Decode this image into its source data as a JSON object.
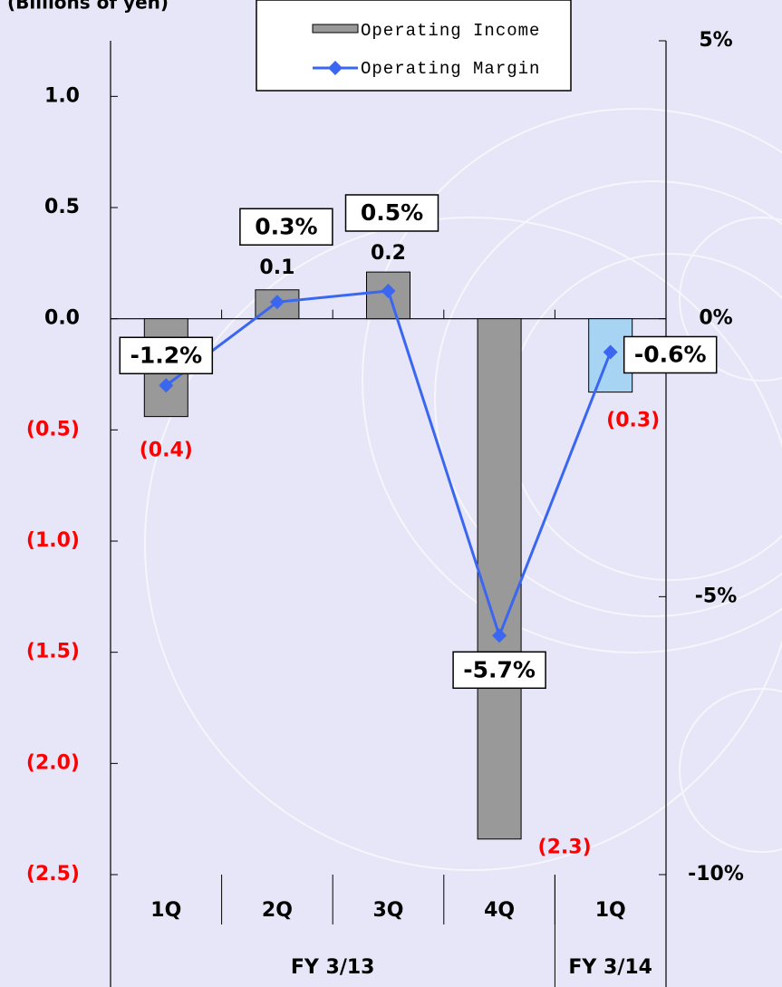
{
  "chart_data": {
    "type": "bar_line",
    "unit_label": "(Billions of yen)",
    "categories": [
      "1Q",
      "2Q",
      "3Q",
      "4Q",
      "1Q"
    ],
    "groups": [
      {
        "label": "FY 3/13",
        "span": [
          0,
          3
        ]
      },
      {
        "label": "FY 3/14",
        "span": [
          4,
          4
        ]
      }
    ],
    "series": [
      {
        "name": "Operating Income",
        "type": "bar",
        "color": "#999999",
        "colors": [
          "#999999",
          "#999999",
          "#999999",
          "#999999",
          "#a8d4f4"
        ],
        "values": [
          -0.44,
          0.13,
          0.21,
          -2.34,
          -0.33
        ],
        "value_labels": [
          "(0.4)",
          "0.1",
          "0.2",
          "(2.3)",
          "(0.3)"
        ]
      },
      {
        "name": "Operating Margin",
        "type": "line",
        "axis": "y2",
        "color": "#3a66f0",
        "values": [
          -1.2,
          0.3,
          0.5,
          -5.7,
          -0.6
        ],
        "value_labels": [
          "-1.2%",
          "0.3%",
          "0.5%",
          "-5.7%",
          "-0.6%"
        ]
      }
    ],
    "negative_color": "#ff0000",
    "ylim": [
      -2.5,
      1.25
    ],
    "yticks": [
      {
        "value": -2.5,
        "label": "(2.5)"
      },
      {
        "value": -2,
        "label": "(2.0)"
      },
      {
        "value": -1.5,
        "label": "(1.5)"
      },
      {
        "value": -1,
        "label": "(1.0)"
      },
      {
        "value": -0.5,
        "label": "(0.5)"
      },
      {
        "value": 0,
        "label": "0.0"
      },
      {
        "value": 0.5,
        "label": "0.5"
      },
      {
        "value": 1,
        "label": "1.0"
      }
    ],
    "y2lim": [
      -10,
      5
    ],
    "y2ticks": [
      {
        "value": -10,
        "label": "-10%"
      },
      {
        "value": -5,
        "label": "-5%"
      },
      {
        "value": 0,
        "label": "0%"
      },
      {
        "value": 5,
        "label": "5%"
      }
    ]
  }
}
